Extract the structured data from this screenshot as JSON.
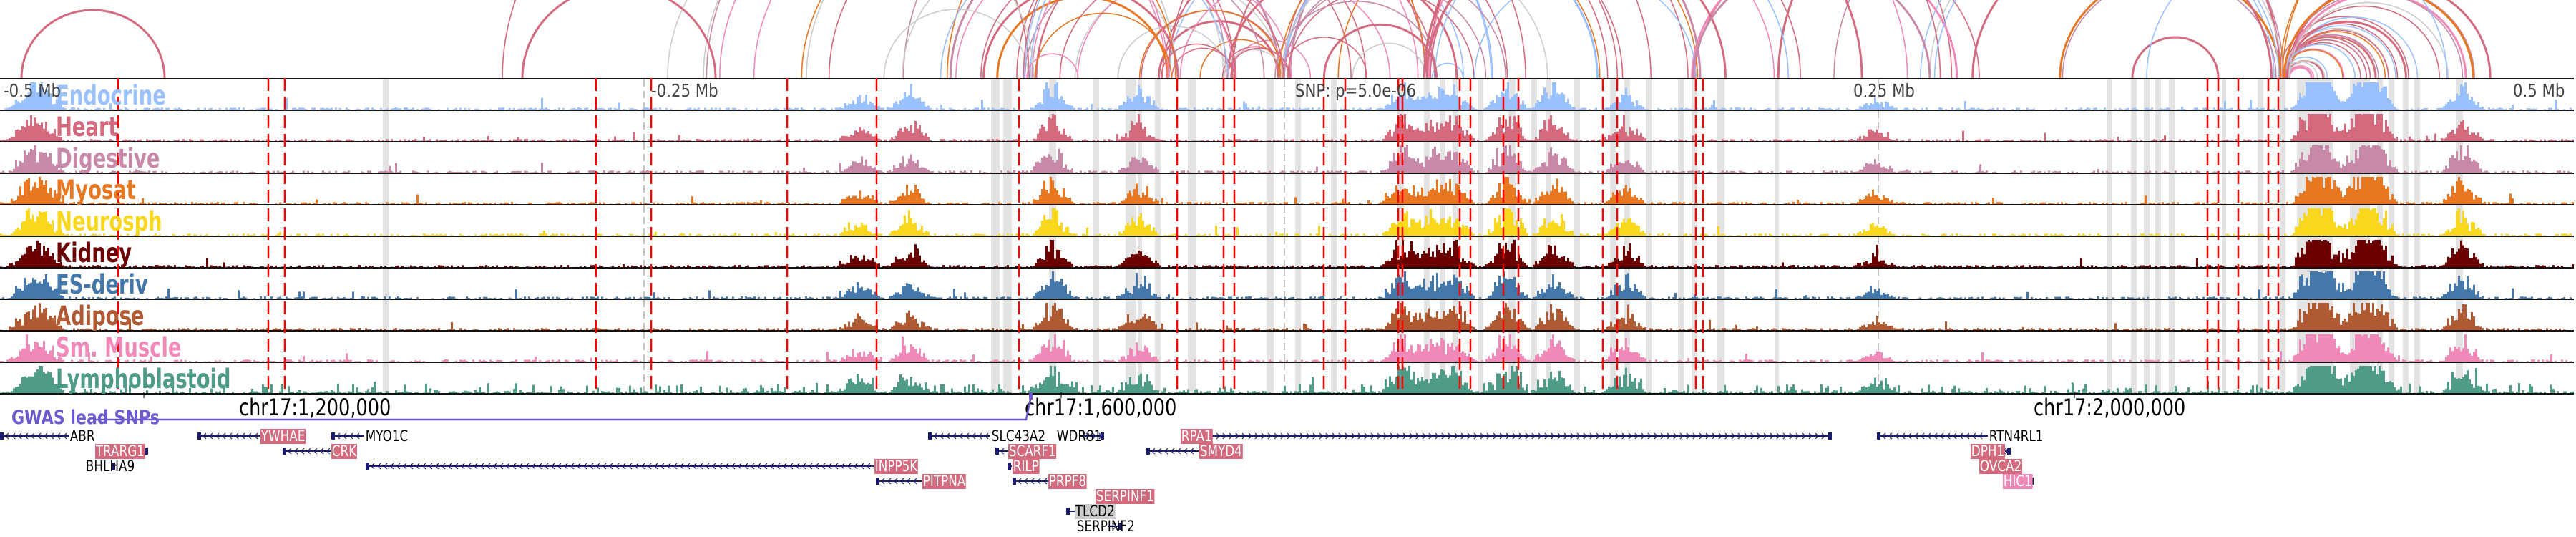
{
  "axis": {
    "left_label": "-0.5 Mb",
    "left_mid_label": "-0.25 Mb",
    "snp_label": "SNP: p=5.0e-06",
    "right_mid_label": "0.25 Mb",
    "right_label": "0.5 Mb"
  },
  "tracks": [
    {
      "name": "Endocrine",
      "color": "#99c0ff"
    },
    {
      "name": "Heart",
      "color": "#d46a7e"
    },
    {
      "name": "Digestive",
      "color": "#c888a8"
    },
    {
      "name": "Myosat",
      "color": "#e87722"
    },
    {
      "name": "Neurosph",
      "color": "#f9d71c"
    },
    {
      "name": "Kidney",
      "color": "#6b0000"
    },
    {
      "name": "ES-deriv",
      "color": "#4477aa"
    },
    {
      "name": "Adipose",
      "color": "#b05a34"
    },
    {
      "name": "Sm. Muscle",
      "color": "#f088b8"
    },
    {
      "name": "Lymphoblastoid",
      "color": "#4e9b88"
    }
  ],
  "coordinates": [
    "chr17:1,200,000",
    "chr17:1,600,000",
    "chr17:2,000,000"
  ],
  "gwas_track_label": "GWAS lead SNPs",
  "colors": {
    "gwas": "#6a5acd",
    "gene": "#1a1a6e",
    "highlight": "#d46a7e",
    "highlight_pink": "#f088b8",
    "highlight_grey": "#cccccc",
    "snp_line": "#ff0000"
  },
  "genes": [
    {
      "name": "ABR",
      "strand": "-",
      "style": "plain"
    },
    {
      "name": "TRARG1",
      "strand": "+",
      "style": "highlight"
    },
    {
      "name": "BHLHA9",
      "strand": "+",
      "style": "plain"
    },
    {
      "name": "YWHAE",
      "strand": "-",
      "style": "highlight"
    },
    {
      "name": "CRK",
      "strand": "-",
      "style": "highlight"
    },
    {
      "name": "MYO1C",
      "strand": "-",
      "style": "plain"
    },
    {
      "name": "INPP5K",
      "strand": "-",
      "style": "highlight"
    },
    {
      "name": "PITPNA",
      "strand": "-",
      "style": "highlight"
    },
    {
      "name": "SLC43A2",
      "strand": "-",
      "style": "plain"
    },
    {
      "name": "SCARF1",
      "strand": "-",
      "style": "highlight"
    },
    {
      "name": "RILP",
      "strand": "-",
      "style": "highlight"
    },
    {
      "name": "PRPF8",
      "strand": "-",
      "style": "highlight"
    },
    {
      "name": "WDR81",
      "strand": "+",
      "style": "plain"
    },
    {
      "name": "SERPINF1",
      "strand": "+",
      "style": "highlight"
    },
    {
      "name": "TLCD2",
      "strand": "-",
      "style": "grey"
    },
    {
      "name": "SERPINF2",
      "strand": "+",
      "style": "plain"
    },
    {
      "name": "RPA1",
      "strand": "+",
      "style": "highlight"
    },
    {
      "name": "SMYD4",
      "strand": "-",
      "style": "highlight"
    },
    {
      "name": "RTN4RL1",
      "strand": "-",
      "style": "plain"
    },
    {
      "name": "DPH1",
      "strand": "+",
      "style": "highlight"
    },
    {
      "name": "OVCA2",
      "strand": "+",
      "style": "highlight"
    },
    {
      "name": "HIC1",
      "strand": "+",
      "style": "pink"
    }
  ]
}
